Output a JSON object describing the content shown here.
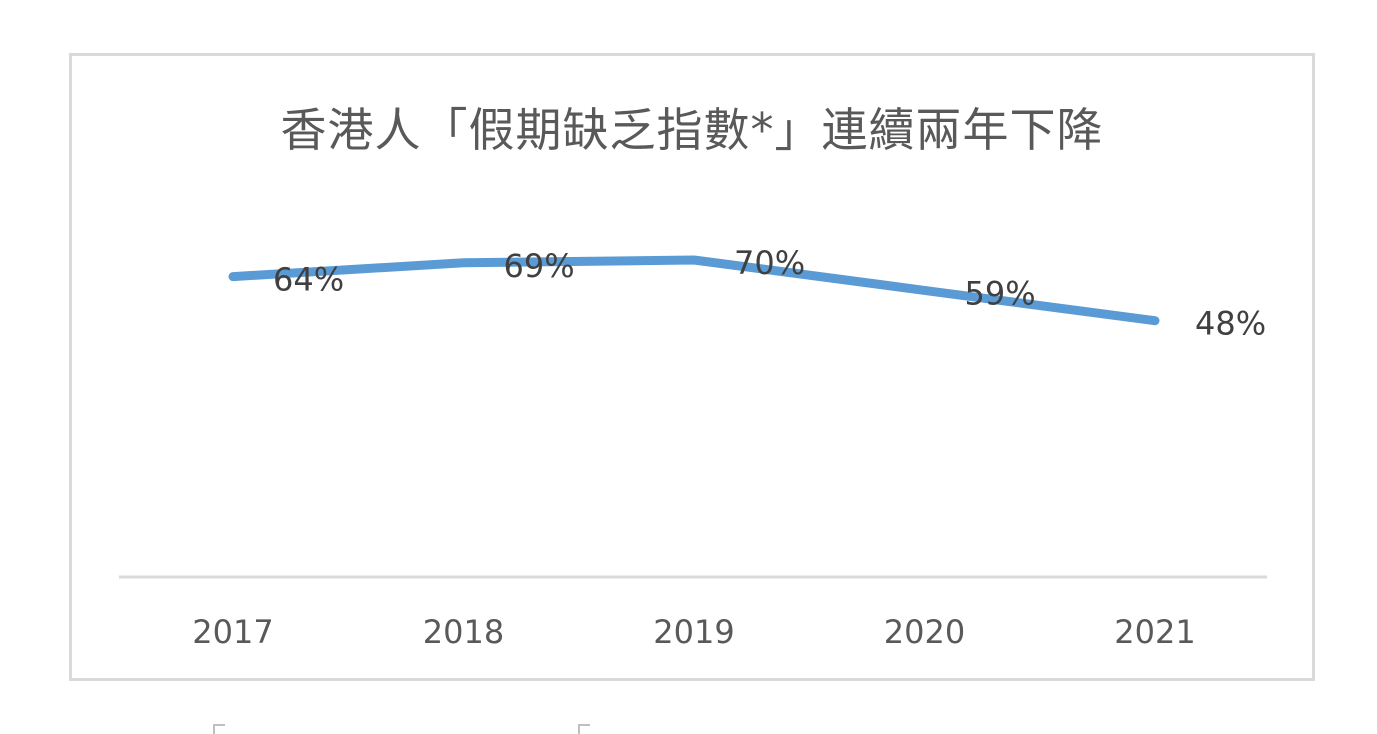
{
  "chart_data": {
    "type": "line",
    "title": "香港人「假期缺乏指數*」連續兩年下降",
    "categories": [
      "2017",
      "2018",
      "2019",
      "2020",
      "2021"
    ],
    "series": [
      {
        "values": [
          64,
          69,
          70,
          59,
          48
        ],
        "data_labels": [
          "64%",
          "69%",
          "70%",
          "59%",
          "48%"
        ],
        "color": "#5b9bd5"
      }
    ],
    "xlabel": "",
    "ylabel": "",
    "ylim": [
      0,
      100
    ],
    "grid": false,
    "legend": "none"
  },
  "colors": {
    "line": "#5b9bd5",
    "axis": "#d9d9d9",
    "text": "#595959",
    "label": "#404040"
  }
}
